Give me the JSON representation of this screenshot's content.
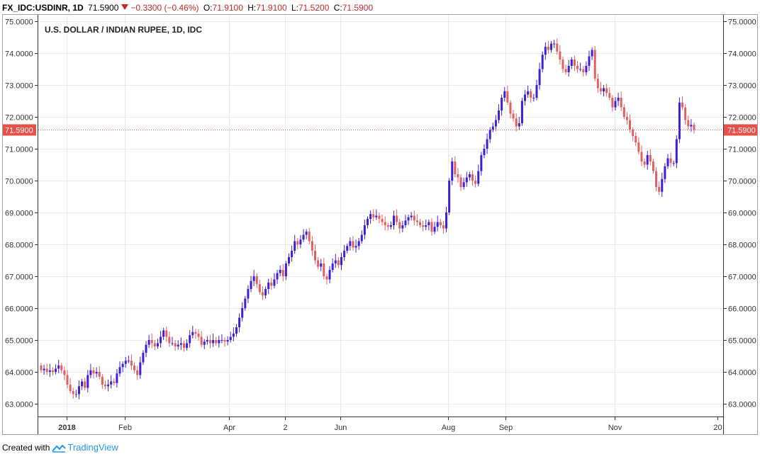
{
  "header": {
    "symbol": "FX_IDC:USDINR, 1D",
    "last": "71.5900",
    "change": "−0.3300 (−0.46%)",
    "open_label": "O:",
    "open": "71.9100",
    "high_label": "H:",
    "high": "71.9100",
    "low_label": "L:",
    "low": "71.5200",
    "close_label": "C:",
    "close": "71.5900"
  },
  "footer": {
    "created": "Created with",
    "brand": "TradingView"
  },
  "colors": {
    "up": "#3f1fd6",
    "down": "#e06060",
    "grid": "#e6ebf2",
    "axis": "#333333",
    "price_line": "#e8504a",
    "price_tag": "#e8504a"
  },
  "chart_data": {
    "type": "candlestick",
    "title": "U.S. DOLLAR / INDIAN RUPEE, 1D, IDC",
    "ylim": [
      62.7,
      75.0
    ],
    "y_ticks": [
      "63.0000",
      "64.0000",
      "65.0000",
      "66.0000",
      "67.0000",
      "68.0000",
      "69.0000",
      "70.0000",
      "71.0000",
      "72.0000",
      "73.0000",
      "74.0000",
      "75.0000"
    ],
    "x_ticks": [
      "2018",
      "Feb",
      "Apr",
      "2",
      "Jun",
      "Aug",
      "Sep",
      "Nov",
      "20"
    ],
    "last_price_label": "71.5900",
    "last_price": 71.59,
    "closes": [
      64.05,
      64.1,
      64.0,
      64.05,
      64.0,
      64.1,
      64.2,
      64.05,
      63.9,
      63.6,
      63.4,
      63.3,
      63.3,
      63.55,
      63.7,
      63.5,
      63.9,
      64.05,
      63.95,
      64.0,
      63.85,
      63.6,
      63.55,
      63.6,
      63.7,
      63.65,
      63.95,
      64.15,
      64.25,
      64.35,
      64.35,
      64.2,
      64.05,
      63.9,
      64.3,
      64.6,
      64.85,
      65.0,
      64.9,
      64.8,
      64.9,
      65.1,
      65.3,
      65.1,
      64.9,
      64.9,
      64.8,
      64.85,
      64.9,
      64.75,
      64.9,
      65.15,
      65.25,
      65.2,
      65.1,
      64.85,
      64.95,
      65.0,
      64.9,
      65.0,
      64.9,
      65.0,
      65.0,
      64.95,
      65.0,
      65.1,
      65.2,
      65.4,
      65.7,
      66.0,
      66.3,
      66.6,
      66.85,
      67.0,
      66.75,
      66.5,
      66.4,
      66.6,
      66.8,
      66.7,
      66.9,
      67.1,
      67.2,
      67.0,
      67.4,
      67.6,
      67.8,
      68.1,
      68.0,
      68.15,
      68.3,
      68.4,
      68.1,
      67.8,
      67.5,
      67.3,
      67.4,
      67.0,
      66.9,
      67.2,
      67.4,
      67.5,
      67.35,
      67.6,
      67.8,
      67.95,
      68.1,
      67.9,
      67.95,
      68.1,
      68.3,
      68.6,
      68.8,
      68.95,
      68.85,
      68.9,
      68.8,
      68.7,
      68.6,
      68.55,
      68.6,
      68.9,
      68.7,
      68.5,
      68.6,
      68.75,
      68.85,
      68.9,
      68.75,
      68.7,
      68.6,
      68.55,
      68.6,
      68.7,
      68.4,
      68.55,
      68.7,
      68.6,
      68.5,
      69.0,
      70.0,
      70.6,
      70.2,
      70.1,
      69.8,
      69.95,
      70.1,
      70.2,
      70.0,
      69.9,
      70.3,
      70.8,
      71.0,
      71.3,
      71.6,
      71.7,
      71.9,
      72.2,
      72.6,
      72.8,
      72.45,
      72.1,
      71.95,
      71.7,
      71.8,
      72.5,
      72.7,
      72.8,
      72.6,
      72.6,
      73.0,
      73.5,
      73.95,
      74.2,
      74.1,
      74.3,
      74.3,
      74.05,
      73.8,
      73.5,
      73.4,
      73.6,
      73.8,
      73.6,
      73.5,
      73.5,
      73.4,
      73.6,
      73.9,
      74.1,
      73.2,
      72.9,
      72.8,
      72.9,
      72.75,
      72.6,
      72.3,
      72.5,
      72.6,
      72.3,
      72.0,
      71.9,
      71.6,
      71.4,
      71.2,
      70.9,
      70.6,
      70.5,
      70.8,
      70.6,
      70.3,
      69.8,
      69.65,
      70.05,
      70.45,
      70.7,
      70.55,
      70.55,
      71.3,
      72.45,
      72.3,
      71.9,
      71.7,
      71.75,
      71.59
    ]
  }
}
